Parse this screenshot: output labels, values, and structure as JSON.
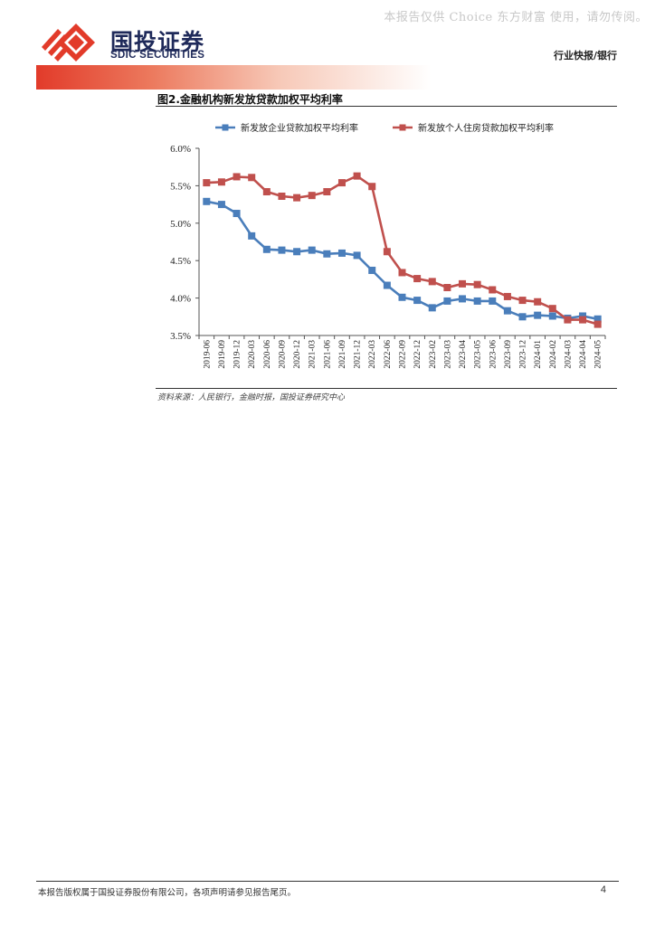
{
  "watermark": "本报告仅供 Choice 东方财富 使用，请勿传阅。",
  "brand": {
    "name_cn": "国投证券",
    "name_en": "SDIC SECURITIES",
    "logo_icon": "sdic-logo-icon",
    "accent_color": "#e23b2a",
    "text_color": "#1f2a5a"
  },
  "header": {
    "category": "行业快报/银行"
  },
  "chart_data": {
    "type": "line",
    "title": "图2.金融机构新发放贷款加权平均利率",
    "x": [
      "2019-06",
      "2019-09",
      "2019-12",
      "2020-03",
      "2020-06",
      "2020-09",
      "2020-12",
      "2021-03",
      "2021-06",
      "2021-09",
      "2021-12",
      "2022-03",
      "2022-06",
      "2022-09",
      "2022-12",
      "2023-02",
      "2023-03",
      "2023-04",
      "2023-05",
      "2023-06",
      "2023-09",
      "2023-12",
      "2024-01",
      "2024-02",
      "2024-03",
      "2024-04",
      "2024-05"
    ],
    "y_ticks": [
      "3.5%",
      "4.0%",
      "4.5%",
      "5.0%",
      "5.5%",
      "6.0%"
    ],
    "ylim": [
      3.5,
      6.0
    ],
    "grid": false,
    "legend_position": "top",
    "series": [
      {
        "name": "新发放企业贷款加权平均利率",
        "color": "#4a7ebb",
        "values": [
          5.29,
          5.25,
          5.13,
          4.83,
          4.65,
          4.64,
          4.62,
          4.64,
          4.59,
          4.6,
          4.57,
          4.37,
          4.17,
          4.01,
          3.97,
          3.87,
          3.96,
          3.99,
          3.96,
          3.96,
          3.83,
          3.75,
          3.77,
          3.76,
          3.73,
          3.76,
          3.72
        ]
      },
      {
        "name": "新发放个人住房贷款加权平均利率",
        "color": "#c0504d",
        "values": [
          5.54,
          5.55,
          5.62,
          5.61,
          5.42,
          5.36,
          5.34,
          5.37,
          5.42,
          5.54,
          5.63,
          5.49,
          4.62,
          4.34,
          4.26,
          4.22,
          4.14,
          4.19,
          4.18,
          4.11,
          4.02,
          3.97,
          3.95,
          3.86,
          3.71,
          3.71,
          3.65
        ]
      }
    ]
  },
  "source": "资料来源：人民银行，金融时报，国投证券研究中心",
  "footer": {
    "disclaimer": "本报告版权属于国投证券股份有限公司，各项声明请参见报告尾页。",
    "page_number": "4"
  }
}
